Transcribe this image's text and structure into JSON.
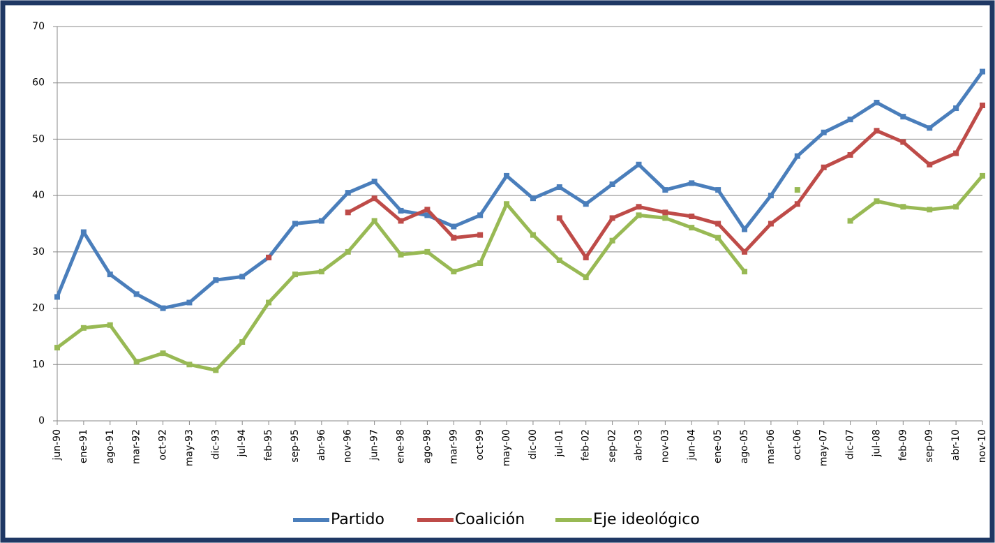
{
  "chart_data": {
    "type": "line",
    "categories": [
      "jun-90",
      "ene-91",
      "ago-91",
      "mar-92",
      "oct-92",
      "may-93",
      "dic-93",
      "jul-94",
      "feb-95",
      "sep-95",
      "abr-96",
      "nov-96",
      "jun-97",
      "ene-98",
      "ago-98",
      "mar-99",
      "oct-99",
      "may-00",
      "dic-00",
      "jul-01",
      "feb-02",
      "sep-02",
      "abr-03",
      "nov-03",
      "jun-04",
      "ene-05",
      "ago-05",
      "mar-06",
      "oct-06",
      "may-07",
      "dic-07",
      "jul-08",
      "feb-09",
      "sep-09",
      "abr-10",
      "nov-10"
    ],
    "series": [
      {
        "name": "Partido",
        "color": "#4a7ebb",
        "values": [
          22,
          33.5,
          26,
          22.5,
          20,
          21,
          25,
          25.6,
          29,
          35,
          35.5,
          40.5,
          42.5,
          37.3,
          36.5,
          34.5,
          36.5,
          43.5,
          39.5,
          41.5,
          38.5,
          42,
          45.5,
          41,
          42.2,
          41,
          34,
          40,
          47,
          51.2,
          53.5,
          56.5,
          54,
          52,
          55.5,
          62
        ]
      },
      {
        "name": "Coalición",
        "color": "#be4b48",
        "values": [
          null,
          null,
          null,
          null,
          null,
          null,
          null,
          null,
          29,
          null,
          null,
          37,
          39.5,
          35.5,
          37.5,
          32.5,
          33,
          null,
          null,
          36,
          29,
          36,
          38,
          37,
          36.3,
          35,
          30,
          35,
          38.5,
          45,
          47.2,
          51.5,
          49.5,
          45.5,
          47.5,
          56
        ]
      },
      {
        "name": "Eje ideológico",
        "color": "#98b954",
        "values": [
          13,
          16.5,
          17,
          10.5,
          12,
          10,
          9,
          14,
          21,
          26,
          26.5,
          30,
          35.5,
          29.5,
          30,
          26.5,
          28,
          38.5,
          33,
          28.5,
          25.5,
          32,
          36.5,
          36,
          34.3,
          32.5,
          26.5,
          null,
          41,
          null,
          35.5,
          39,
          38,
          37.5,
          38,
          43.5
        ]
      }
    ],
    "ylim": [
      0,
      70
    ],
    "yticks": [
      0,
      10,
      20,
      30,
      40,
      50,
      60,
      70
    ],
    "grid": true,
    "legend": "bottom"
  }
}
